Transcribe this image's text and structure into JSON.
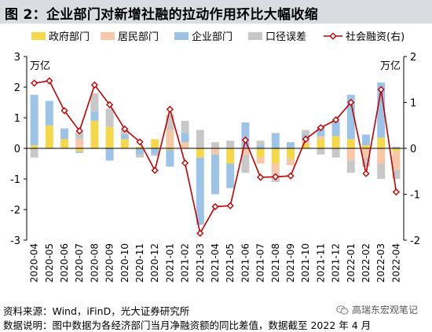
{
  "title": "图 2：企业部门对新增社融的拉动作用环比大幅收缩",
  "chart_data": {
    "type": "bar",
    "stacked": true,
    "categories": [
      "2020-04",
      "2020-05",
      "2020-06",
      "2020-07",
      "2020-08",
      "2020-09",
      "2020-10",
      "2020-11",
      "2020-12",
      "2021-01",
      "2021-02",
      "2021-03",
      "2021-04",
      "2021-05",
      "2021-06",
      "2021-07",
      "2021-08",
      "2021-09",
      "2021-10",
      "2021-11",
      "2021-12",
      "2022-01",
      "2022-02",
      "2022-03",
      "2022-04"
    ],
    "series": [
      {
        "name": "政府部门",
        "color": "#f5d84a",
        "axis": "left",
        "values": [
          0.1,
          0.75,
          0.3,
          -0.1,
          0.9,
          0.7,
          0.3,
          0.05,
          0.3,
          -0.05,
          0.0,
          -0.3,
          0.0,
          -0.5,
          0.0,
          -0.3,
          -0.5,
          -0.35,
          0.15,
          0.3,
          0.4,
          0.3,
          0.1,
          0.35,
          -0.1
        ]
      },
      {
        "name": "居民部门",
        "color": "#f6c8a7",
        "axis": "left",
        "values": [
          0.0,
          0.0,
          0.0,
          0.3,
          0.0,
          0.0,
          0.0,
          0.0,
          0.0,
          0.6,
          0.2,
          0.0,
          -0.2,
          0.0,
          -0.2,
          -0.2,
          -0.3,
          -0.2,
          0.1,
          0.1,
          0.0,
          -0.4,
          -0.3,
          -0.5,
          -0.6
        ]
      },
      {
        "name": "企业部门",
        "color": "#9dc3e6",
        "axis": "left",
        "values": [
          1.65,
          0.8,
          0.35,
          -0.05,
          0.3,
          -0.4,
          0.15,
          -0.2,
          -0.2,
          -0.55,
          0.3,
          -2.2,
          -1.3,
          -0.8,
          0.85,
          0.1,
          0.5,
          0.2,
          0.2,
          0.3,
          0.5,
          1.45,
          0.35,
          1.8,
          0.05
        ]
      },
      {
        "name": "口径误差",
        "color": "#c8c8c8",
        "axis": "left",
        "values": [
          -0.3,
          0.0,
          0.0,
          0.25,
          0.6,
          0.6,
          0.15,
          -0.1,
          -0.05,
          0.5,
          0.4,
          0.6,
          0.2,
          0.25,
          -0.6,
          0.15,
          -0.3,
          0.0,
          0.15,
          -0.2,
          -0.3,
          -0.4,
          -0.3,
          -0.5,
          -0.3
        ]
      },
      {
        "name": "社会融资(右)",
        "color": "#c00000",
        "axis": "right",
        "kind": "line",
        "values": [
          1.42,
          1.47,
          0.82,
          0.38,
          1.38,
          0.95,
          0.42,
          0.14,
          -0.48,
          0.85,
          -0.32,
          -1.85,
          -1.27,
          -1.25,
          0.18,
          -0.63,
          -0.62,
          -0.6,
          0.2,
          0.45,
          0.62,
          1.0,
          -0.55,
          1.28,
          -0.95
        ]
      }
    ],
    "ylim_left": [
      -3,
      3
    ],
    "ylim_right": [
      -2,
      2
    ],
    "yticks_left": [
      -3,
      -2,
      -1,
      0,
      1,
      2,
      3
    ],
    "yticks_right": [
      -2,
      -1,
      0,
      1,
      2
    ],
    "ylabel_left": "万亿",
    "ylabel_right": "万亿",
    "legend_position": "top"
  },
  "source_note": "资料来源：Wind，iFinD，光大证券研究所",
  "data_note": "数据说明：图中数据为各经济部门当月净融资额的同比差值，数据截至 2022 年 4 月",
  "watermark": "高瑞东宏观笔记"
}
